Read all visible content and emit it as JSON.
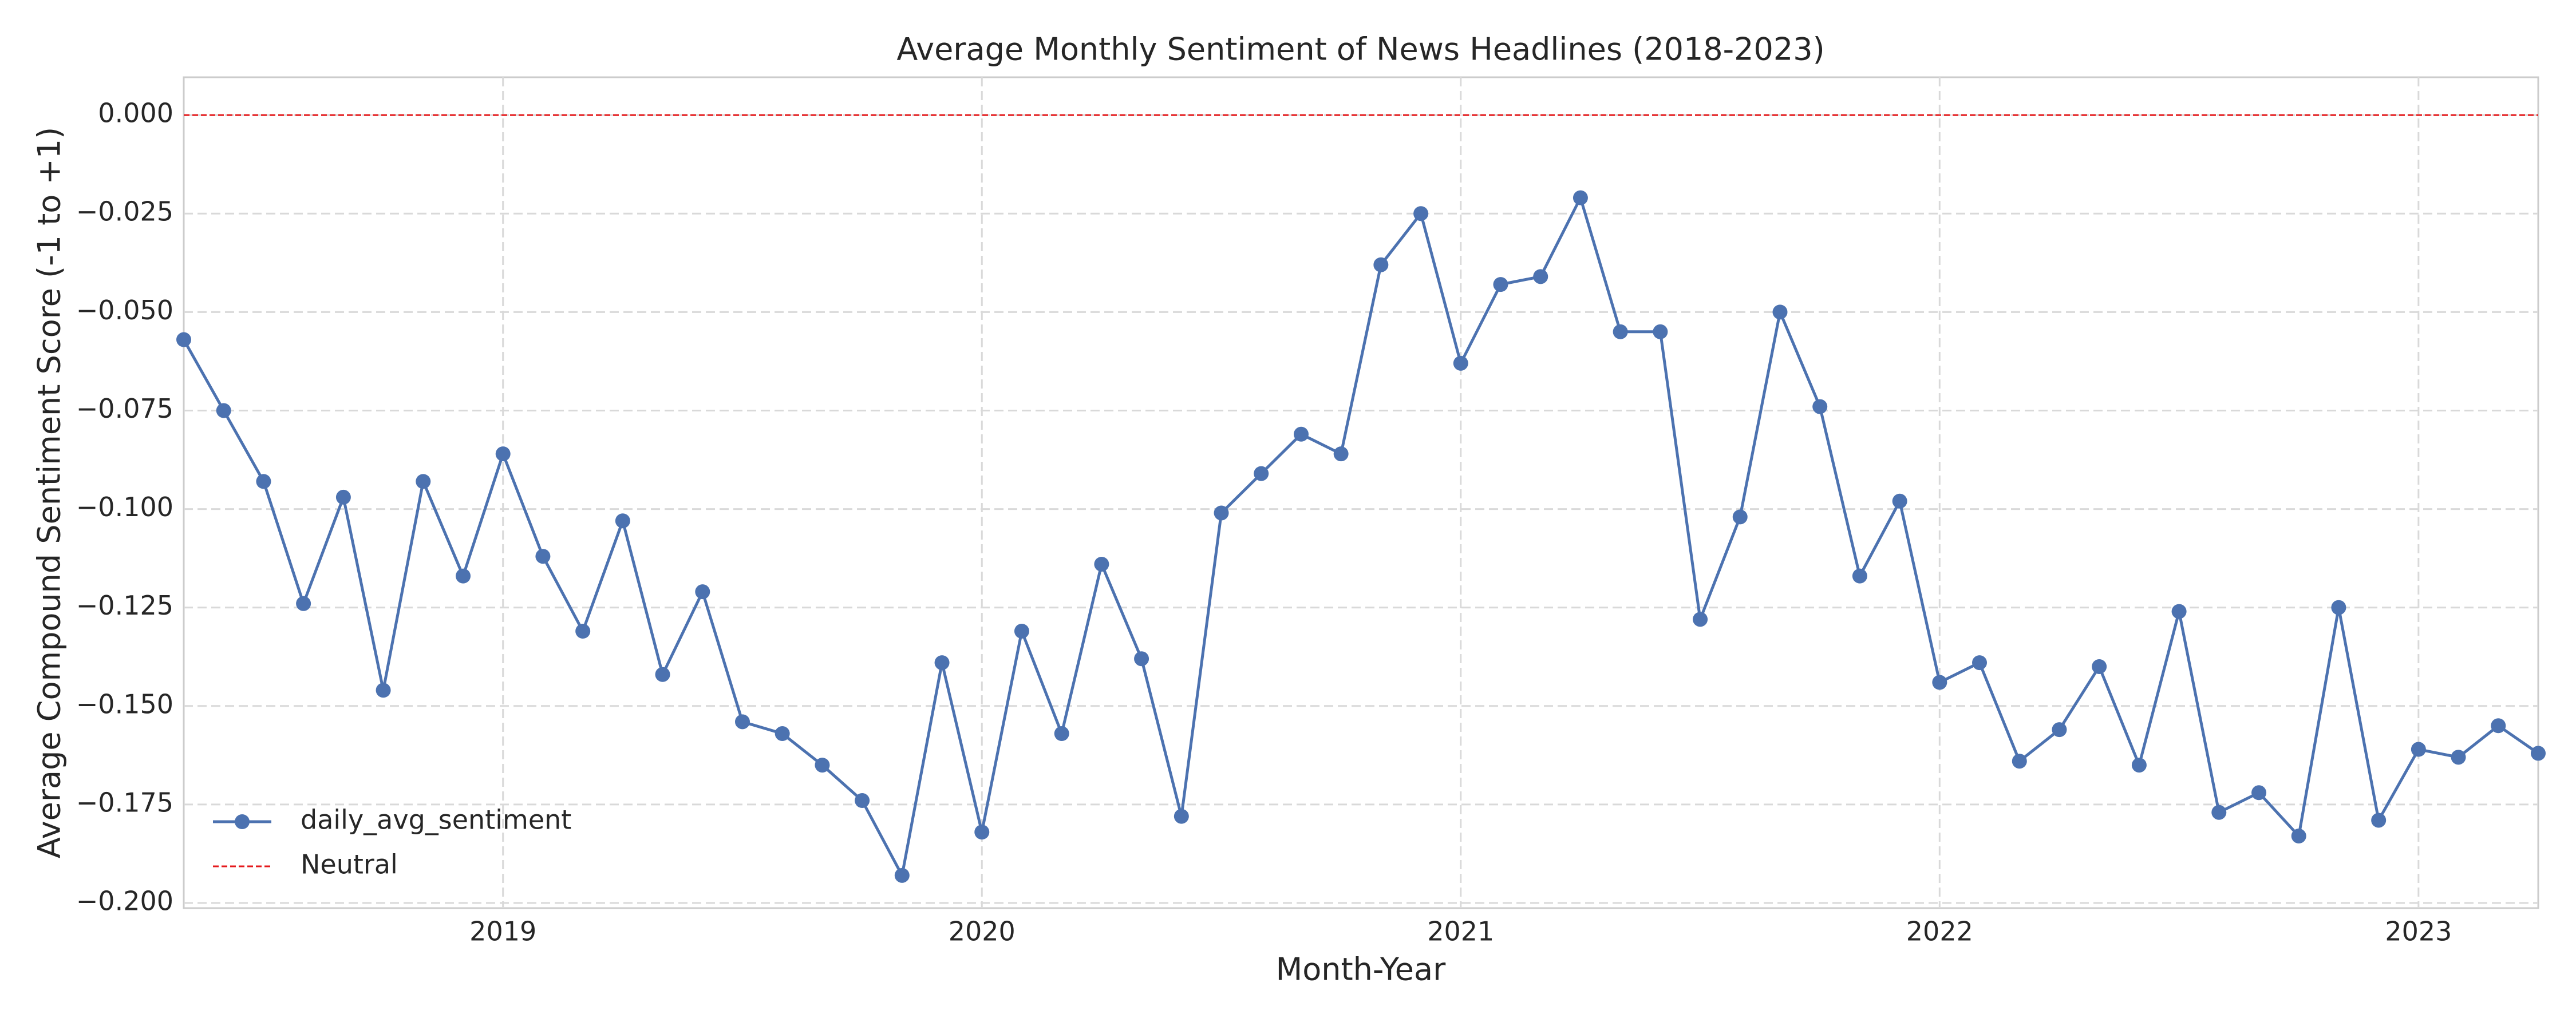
{
  "chart_data": {
    "type": "line",
    "title": "Average Monthly Sentiment of News Headlines (2018-2023)",
    "xlabel": "Month-Year",
    "ylabel": "Average Compound Sentiment Score (-1 to +1)",
    "x": [
      2018.3333,
      2018.4167,
      2018.5,
      2018.5833,
      2018.6667,
      2018.75,
      2018.8333,
      2018.9167,
      2019,
      2019.0833,
      2019.1667,
      2019.25,
      2019.3333,
      2019.4167,
      2019.5,
      2019.5833,
      2019.6667,
      2019.75,
      2019.8333,
      2019.9167,
      2020,
      2020.0833,
      2020.1667,
      2020.25,
      2020.3333,
      2020.4167,
      2020.5,
      2020.5833,
      2020.6667,
      2020.75,
      2020.8333,
      2020.9167,
      2021,
      2021.0833,
      2021.1667,
      2021.25,
      2021.3333,
      2021.4167,
      2021.5,
      2021.5833,
      2021.6667,
      2021.75,
      2021.8333,
      2021.9167,
      2022,
      2022.0833,
      2022.1667,
      2022.25,
      2022.3333,
      2022.4167,
      2022.5,
      2022.5833,
      2022.6667,
      2022.75,
      2022.8333,
      2022.9167,
      2023,
      2023.0833,
      2023.1667,
      2023.25
    ],
    "series": [
      {
        "name": "daily_avg_sentiment",
        "color": "#4c72b0",
        "values": [
          -0.057,
          -0.075,
          -0.093,
          -0.124,
          -0.097,
          -0.146,
          -0.093,
          -0.117,
          -0.086,
          -0.112,
          -0.131,
          -0.103,
          -0.142,
          -0.121,
          -0.154,
          -0.157,
          -0.165,
          -0.174,
          -0.193,
          -0.139,
          -0.182,
          -0.131,
          -0.157,
          -0.114,
          -0.138,
          -0.178,
          -0.101,
          -0.091,
          -0.081,
          -0.086,
          -0.038,
          -0.025,
          -0.063,
          -0.043,
          -0.041,
          -0.021,
          -0.055,
          -0.055,
          -0.128,
          -0.102,
          -0.05,
          -0.074,
          -0.117,
          -0.098,
          -0.144,
          -0.139,
          -0.164,
          -0.156,
          -0.14,
          -0.165,
          -0.126,
          -0.177,
          -0.172,
          -0.183,
          -0.125,
          -0.179,
          -0.161,
          -0.163,
          -0.155,
          -0.162
        ]
      }
    ],
    "hlines": [
      {
        "name": "Neutral",
        "value": 0,
        "color": "#e41a1c"
      }
    ],
    "xlim": [
      2018.3333,
      2023.25
    ],
    "xticks": [
      2019,
      2020,
      2021,
      2022,
      2023
    ],
    "ylim": [
      -0.2013,
      0.0096
    ],
    "yticks": [
      {
        "value": 0,
        "label": "0.000"
      },
      {
        "value": -0.025,
        "label": "−0.025"
      },
      {
        "value": -0.05,
        "label": "−0.050"
      },
      {
        "value": -0.075,
        "label": "−0.075"
      },
      {
        "value": -0.1,
        "label": "−0.100"
      },
      {
        "value": -0.125,
        "label": "−0.125"
      },
      {
        "value": -0.15,
        "label": "−0.150"
      },
      {
        "value": -0.175,
        "label": "−0.175"
      },
      {
        "value": -0.2,
        "label": "−0.200"
      }
    ],
    "grid": true,
    "legend": "lower left"
  }
}
